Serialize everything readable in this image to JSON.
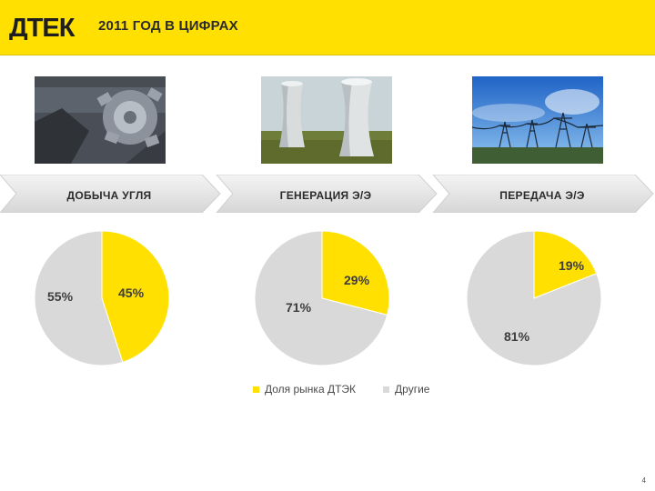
{
  "header": {
    "logo_text": "ДТЕК",
    "title": "2011 ГОД В ЦИФРАХ",
    "accent_color": "#FFE000"
  },
  "photos": [
    {
      "subject": "coal-excavator"
    },
    {
      "subject": "cooling-towers"
    },
    {
      "subject": "power-lines"
    }
  ],
  "chart_data": [
    {
      "type": "pie",
      "title": "ДОБЫЧА УГЛЯ",
      "slices": [
        {
          "name": "Доля рынка ДТЭК",
          "value": 45,
          "label": "45%"
        },
        {
          "name": "Другие",
          "value": 55,
          "label": "55%"
        }
      ]
    },
    {
      "type": "pie",
      "title": "ГЕНЕРАЦИЯ Э/Э",
      "slices": [
        {
          "name": "Доля рынка ДТЭК",
          "value": 29,
          "label": "29%"
        },
        {
          "name": "Другие",
          "value": 71,
          "label": "71%"
        }
      ]
    },
    {
      "type": "pie",
      "title": "ПЕРЕДАЧА Э/Э",
      "slices": [
        {
          "name": "Доля рынка ДТЭК",
          "value": 19,
          "label": "19%"
        },
        {
          "name": "Другие",
          "value": 81,
          "label": "81%"
        }
      ]
    }
  ],
  "legend": [
    {
      "name": "Доля рынка ДТЭК",
      "color": "#FFE000"
    },
    {
      "name": "Другие",
      "color": "#D9D9D9"
    }
  ],
  "footer": {
    "page_number": "4"
  }
}
